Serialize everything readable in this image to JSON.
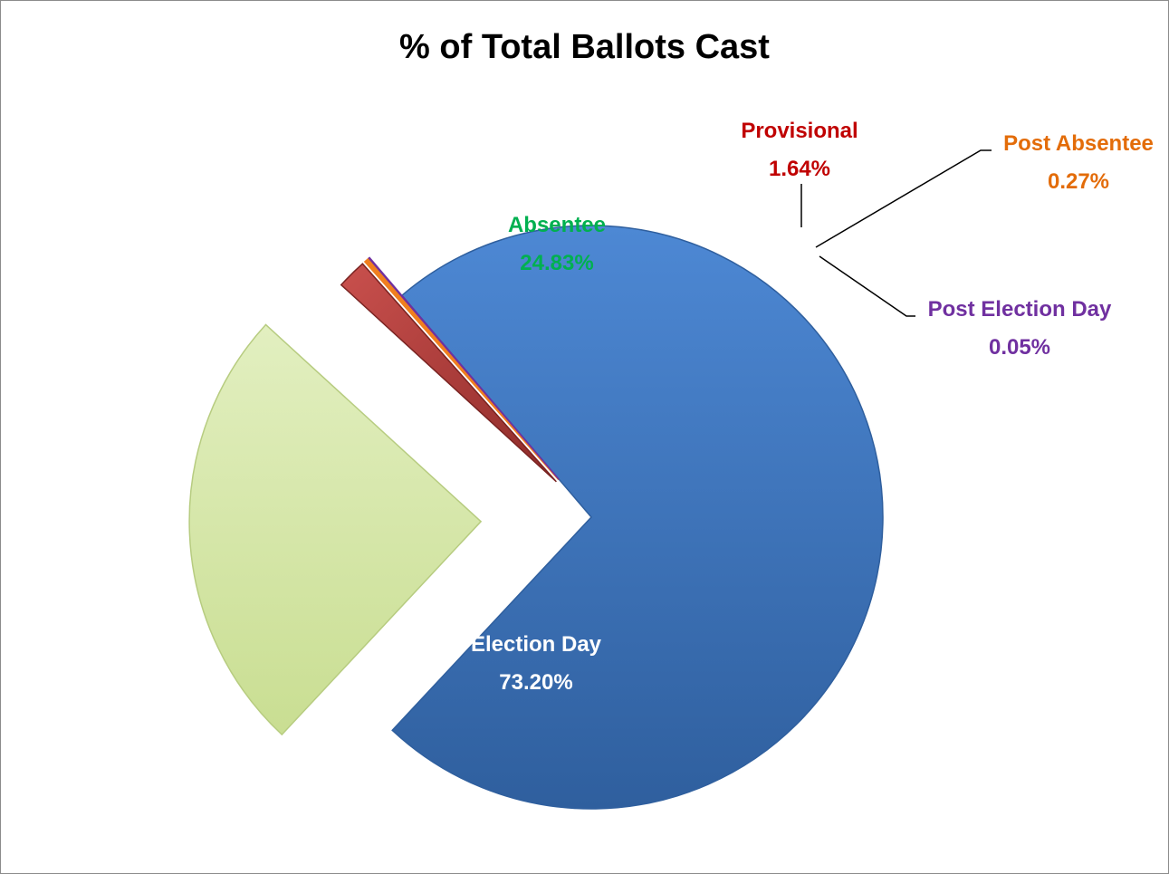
{
  "chart_data": {
    "type": "pie",
    "title": "% of Total Ballots Cast",
    "unit": "%",
    "slices": [
      {
        "label": "Election Day",
        "value": 73.2,
        "value_text": "73.20%",
        "color": "#3f77c4",
        "label_color": "#ffffff"
      },
      {
        "label": "Absentee",
        "value": 24.83,
        "value_text": "24.83%",
        "color": "#d4e6a4",
        "label_color": "#00b050"
      },
      {
        "label": "Provisional",
        "value": 1.64,
        "value_text": "1.64%",
        "color": "#b03a38",
        "label_color": "#c00000"
      },
      {
        "label": "Post Absentee",
        "value": 0.27,
        "value_text": "0.27%",
        "color": "#f07f1f",
        "label_color": "#e36c09"
      },
      {
        "label": "Post Election Day",
        "value": 0.05,
        "value_text": "0.05%",
        "color": "#7030a0",
        "label_color": "#7030a0"
      }
    ],
    "legend": "none",
    "exploded": true
  }
}
